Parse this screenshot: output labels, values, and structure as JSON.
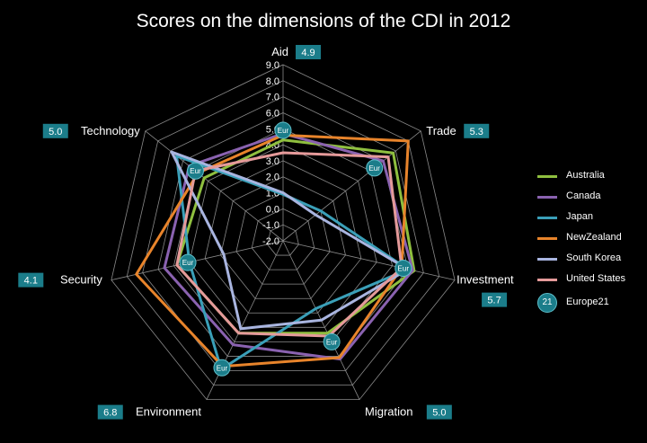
{
  "chart_data": {
    "type": "radar",
    "title": "Scores on the dimensions of the CDI in 2012",
    "axes": [
      "Aid",
      "Trade",
      "Investment",
      "Migration",
      "Environment",
      "Security",
      "Technology"
    ],
    "axis_value_labels": [
      "4.9",
      "5.3",
      "5.7",
      "5.0",
      "6.8",
      "4.1",
      "5.0"
    ],
    "range": [
      -2,
      9
    ],
    "ticks": [
      "9.0",
      "8.0",
      "7.0",
      "6.0",
      "5.0",
      "4.0",
      "3.0",
      "2.0",
      "1.0",
      "0.0",
      "-1.0",
      "-2.0"
    ],
    "series": [
      {
        "name": "Australia",
        "color": "#8fbf3f",
        "values": [
          4.3,
          6.8,
          6.4,
          4.4,
          4.4,
          4.8,
          4.3
        ]
      },
      {
        "name": "Canada",
        "color": "#8a62b0",
        "values": [
          4.7,
          6.0,
          6.3,
          6.2,
          5.2,
          5.6,
          5.5
        ]
      },
      {
        "name": "Japan",
        "color": "#3a9fb8",
        "values": [
          0.9,
          1.0,
          6.0,
          2.7,
          6.9,
          4.0,
          6.5
        ]
      },
      {
        "name": "NewZealand",
        "color": "#e8842b",
        "values": [
          4.6,
          8.0,
          5.6,
          6.1,
          6.7,
          7.4,
          4.8
        ]
      },
      {
        "name": "South Korea",
        "color": "#a9b5e0",
        "values": [
          1.0,
          0.6,
          6.0,
          3.5,
          4.1,
          1.8,
          6.9
        ]
      },
      {
        "name": "United States",
        "color": "#e59a9a",
        "values": [
          3.5,
          6.4,
          5.6,
          4.6,
          4.4,
          4.8,
          5.0
        ]
      }
    ],
    "reference": {
      "name": "Europe21",
      "marker_label": "Eur",
      "legend_marker": "21",
      "values": [
        4.9,
        5.3,
        5.7,
        5.0,
        6.8,
        4.1,
        5.0
      ]
    },
    "legend_position": "right"
  }
}
